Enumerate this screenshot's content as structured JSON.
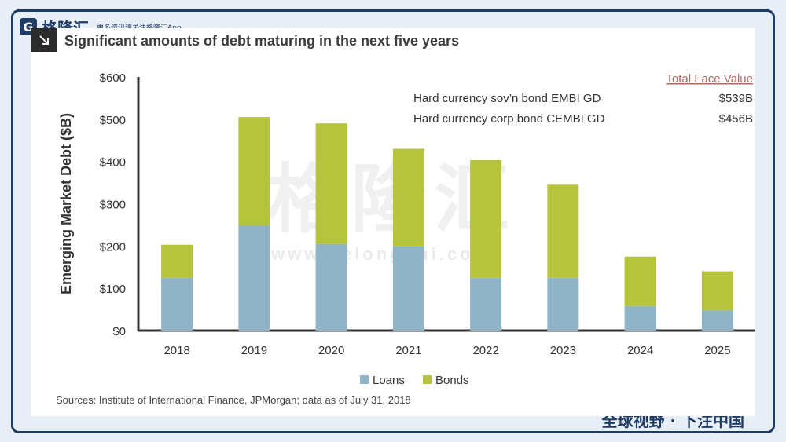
{
  "brand": {
    "logo_letter": "G",
    "name": "格隆汇",
    "tagline": "更多资讯请关注格隆汇App",
    "url": "www.gelonghui.com"
  },
  "slogan": "全球视野 · 下注中国",
  "watermark": {
    "name": "格隆汇",
    "url": "www.gelonghui.com"
  },
  "chart_data": {
    "type": "bar",
    "stacked": true,
    "title": "Significant amounts of debt maturing in the next five years",
    "ylabel": "Emerging Market Debt ($B)",
    "xlabel": "",
    "categories": [
      "2018",
      "2019",
      "2020",
      "2021",
      "2022",
      "2023",
      "2024",
      "2025"
    ],
    "series": [
      {
        "name": "Loans",
        "color": "#8fb4c8",
        "values": [
          125,
          248,
          205,
          200,
          125,
          125,
          58,
          48
        ]
      },
      {
        "name": "Bonds",
        "color": "#b5c43a",
        "values": [
          78,
          257,
          285,
          230,
          278,
          220,
          117,
          92
        ]
      }
    ],
    "ylim": [
      0,
      600
    ],
    "yticks": [
      0,
      100,
      200,
      300,
      400,
      500,
      600
    ],
    "ytick_labels": [
      "$0",
      "$100",
      "$200",
      "$300",
      "$400",
      "$500",
      "$600"
    ],
    "legend_position": "bottom-center",
    "grid": false,
    "annotation": {
      "header": "Total Face Value",
      "rows": [
        {
          "label": "Hard currency sov’n bond EMBI GD",
          "value": "$539B"
        },
        {
          "label": "Hard currency corp bond CEMBI GD",
          "value": "$456B"
        }
      ]
    },
    "source": "Sources: Institute of International Finance, JPMorgan; data as of July 31, 2018"
  }
}
